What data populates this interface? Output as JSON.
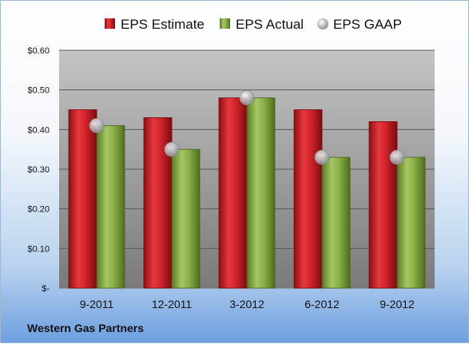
{
  "company": "Western Gas Partners",
  "chart_data": {
    "type": "bar",
    "categories": [
      "9-2011",
      "12-2011",
      "3-2012",
      "6-2012",
      "9-2012"
    ],
    "series": [
      {
        "name": "EPS Estimate",
        "values": [
          0.45,
          0.43,
          0.48,
          0.45,
          0.42
        ],
        "color": "#c0181e",
        "mark": "bar"
      },
      {
        "name": "EPS Actual",
        "values": [
          0.41,
          0.35,
          0.48,
          0.33,
          0.33
        ],
        "color": "#7ea33a",
        "mark": "bar"
      },
      {
        "name": "EPS GAAP",
        "values": [
          0.41,
          0.35,
          0.48,
          0.33,
          0.33
        ],
        "color": "#b8b8c0",
        "mark": "circle"
      }
    ],
    "ylim": [
      0,
      0.6
    ],
    "yticks": [
      0,
      0.1,
      0.2,
      0.3,
      0.4,
      0.5,
      0.6
    ],
    "ytick_labels": [
      "$-",
      "$0.10",
      "$0.20",
      "$0.30",
      "$0.40",
      "$0.50",
      "$0.60"
    ],
    "grid": true,
    "legend_position": "top"
  }
}
